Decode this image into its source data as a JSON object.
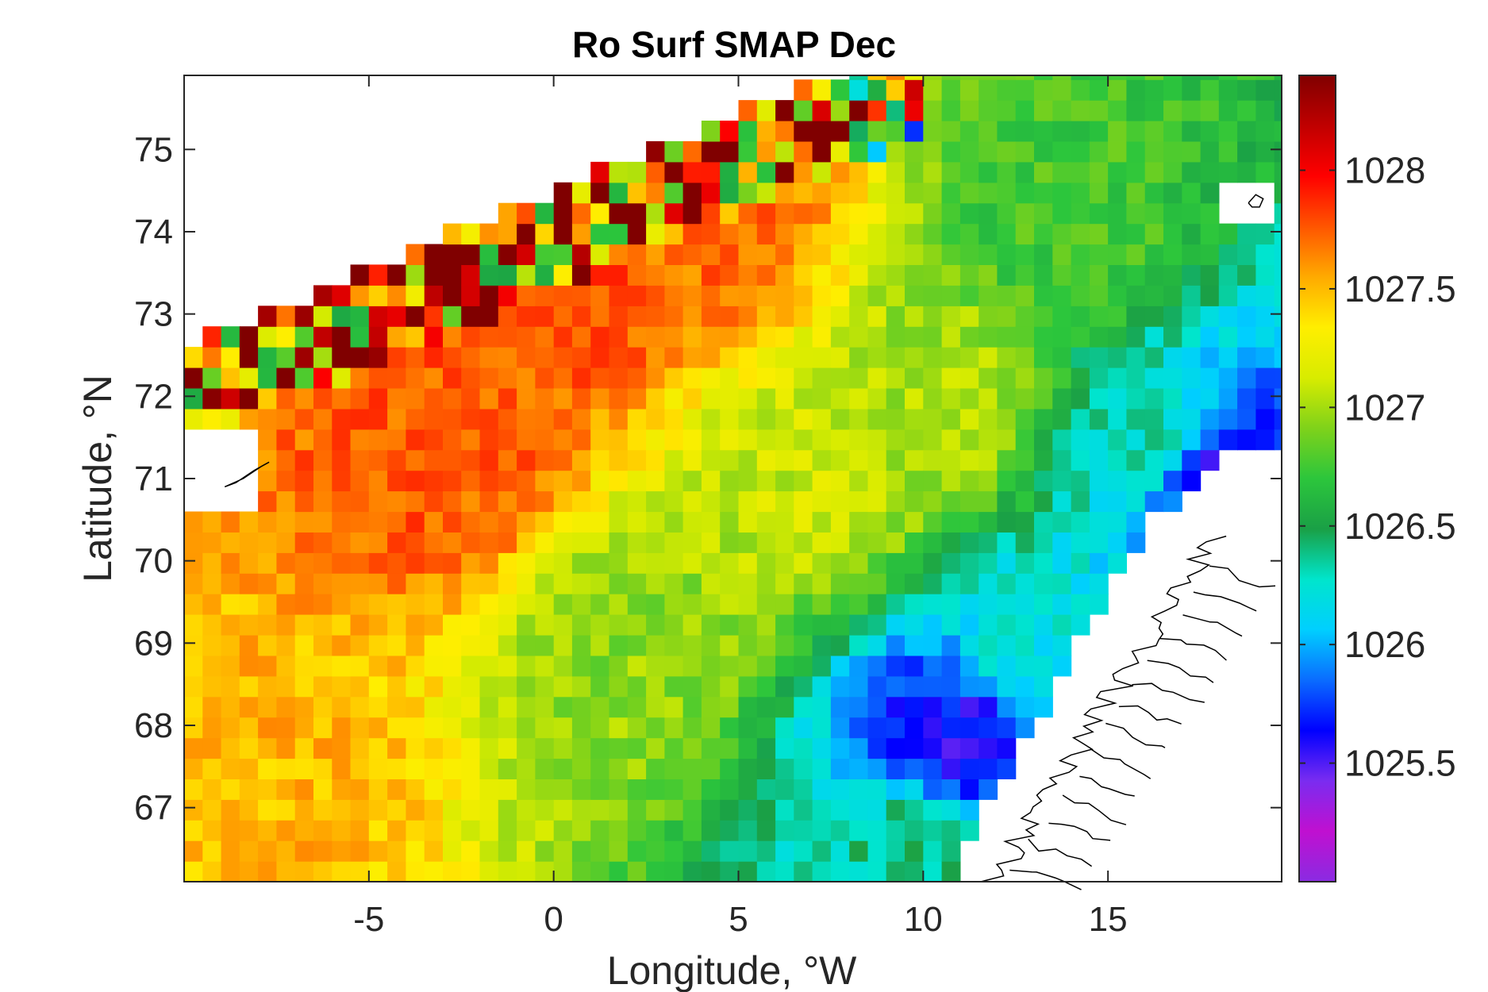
{
  "chart_data": {
    "type": "heatmap",
    "title": "Ro Surf SMAP Dec",
    "xlabel": "Longitude, °W",
    "ylabel": "Latitude, °N",
    "xlim": [
      -10,
      19.7
    ],
    "ylim": [
      66.1,
      75.9
    ],
    "xticks": [
      -5,
      0,
      5,
      10,
      15
    ],
    "xtick_labels": [
      "-5",
      "0",
      "5",
      "10",
      "15"
    ],
    "yticks": [
      67,
      68,
      69,
      70,
      71,
      72,
      73,
      74,
      75
    ],
    "ytick_labels": [
      "67",
      "68",
      "69",
      "70",
      "71",
      "72",
      "73",
      "74",
      "75"
    ],
    "colorbar": {
      "clim": [
        1025.0,
        1028.4
      ],
      "ticks": [
        1025.5,
        1026,
        1026.5,
        1027,
        1027.5,
        1028
      ],
      "tick_labels": [
        "1025.5",
        "1026",
        "1026.5",
        "1027",
        "1027.5",
        "1028"
      ],
      "colors": [
        "#8a2be2",
        "#c010d0",
        "#7a2cf0",
        "#0000ff",
        "#0a6cff",
        "#00cfff",
        "#00e5cc",
        "#1aa046",
        "#2cc63c",
        "#7fd21a",
        "#d8ec00",
        "#ffee00",
        "#ffaa00",
        "#ff5500",
        "#ff0000",
        "#c00000",
        "#800000"
      ]
    },
    "field_description_points": [
      {
        "lon": -8,
        "lat": 67.5,
        "value": 1027.5
      },
      {
        "lon": -3,
        "lat": 71.2,
        "value": 1027.75
      },
      {
        "lon": 0,
        "lat": 73.5,
        "value": 1027.8
      },
      {
        "lon": 4,
        "lat": 74.1,
        "value": 1027.7
      },
      {
        "lon": 2,
        "lat": 69.0,
        "value": 1026.95
      },
      {
        "lon": 7,
        "lat": 71.0,
        "value": 1027.1
      },
      {
        "lon": 11,
        "lat": 72.0,
        "value": 1027.0
      },
      {
        "lon": 14,
        "lat": 74.0,
        "value": 1026.75
      },
      {
        "lon": 16,
        "lat": 71.5,
        "value": 1026.3
      },
      {
        "lon": 18,
        "lat": 71.0,
        "value": 1025.6
      },
      {
        "lon": 11,
        "lat": 67.8,
        "value": 1025.6
      },
      {
        "lon": 10,
        "lat": 66.5,
        "value": 1026.4
      },
      {
        "lon": 13,
        "lat": 68.8,
        "value": 1026.2
      }
    ],
    "grid": false
  }
}
